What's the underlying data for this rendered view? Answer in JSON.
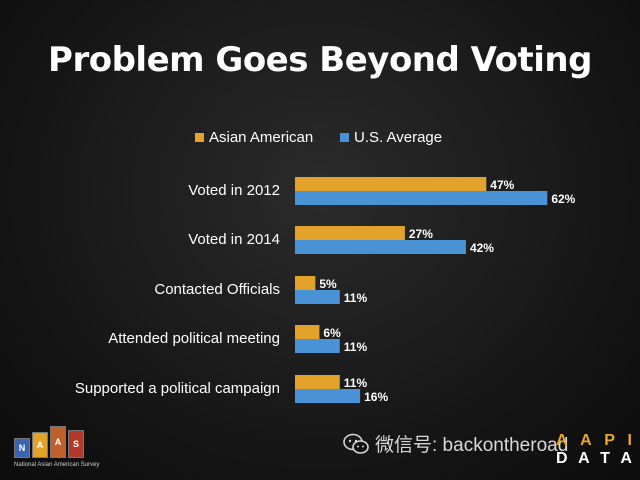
{
  "title": "Problem Goes Beyond Voting",
  "chart_data": {
    "type": "bar",
    "orientation": "horizontal",
    "title": "Problem Goes Beyond Voting",
    "categories": [
      "Voted in 2012",
      "Voted in 2014",
      "Contacted Officials",
      "Attended political meeting",
      "Supported a political campaign"
    ],
    "series": [
      {
        "name": "Asian American",
        "values": [
          47,
          27,
          5,
          6,
          11
        ],
        "labels": [
          "47%",
          "27%",
          "5%",
          "6%",
          "11%"
        ],
        "color": "#e3a32a"
      },
      {
        "name": "U.S. Average",
        "values": [
          62,
          42,
          11,
          11,
          16
        ],
        "labels": [
          "62%",
          "42%",
          "11%",
          "11%",
          "16%"
        ],
        "color": "#4a92d6"
      }
    ],
    "xlim": [
      0,
      100
    ],
    "grid": false,
    "legend_position": "top"
  },
  "logo": {
    "tiles": [
      "N",
      "A",
      "A",
      "S"
    ],
    "tile_colors": [
      "#3a64b0",
      "#e3a32a",
      "#c0602a",
      "#b23a2a"
    ],
    "caption": "National Asian American Survey"
  },
  "wechat": {
    "text": "微信号: backontheroad",
    "icon": "wechat-icon"
  },
  "aapi": {
    "top": [
      "A",
      "A",
      "P",
      "I"
    ],
    "bottom": [
      "D",
      "A",
      "T",
      "A"
    ]
  }
}
